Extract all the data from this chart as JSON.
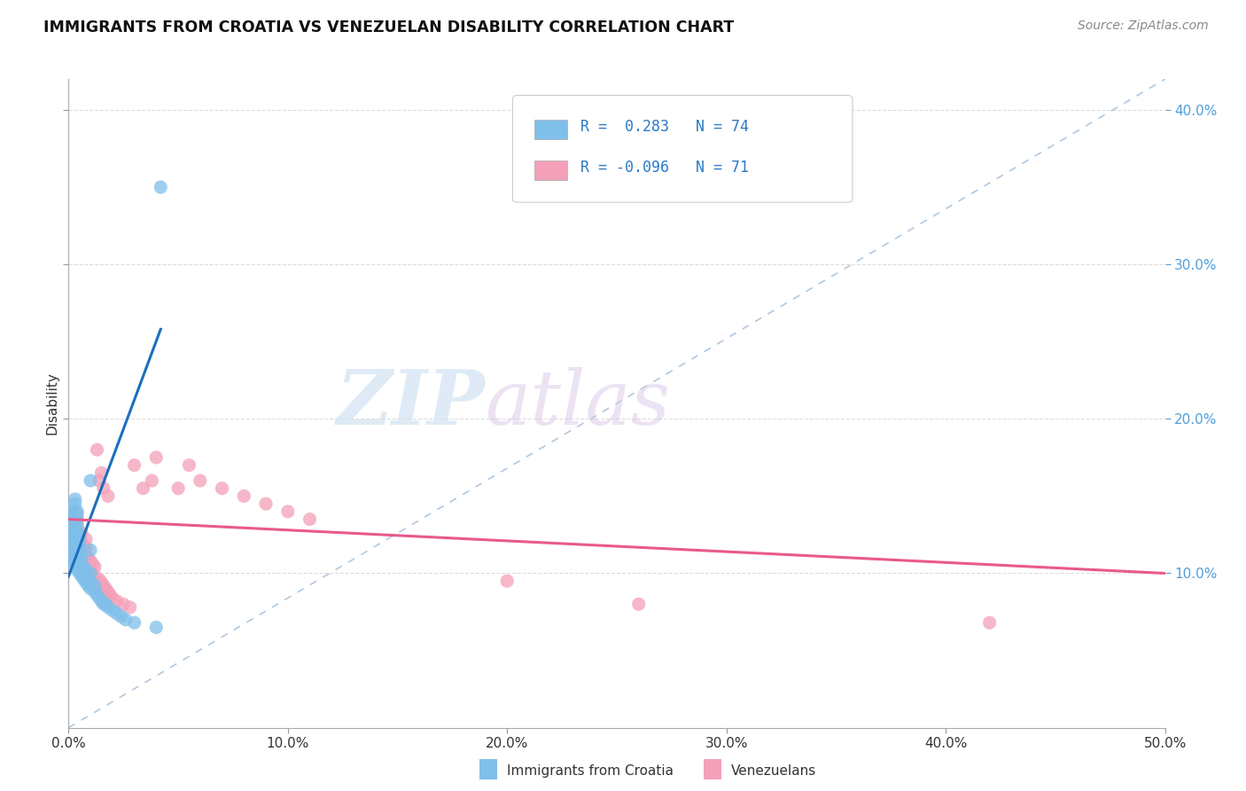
{
  "title": "IMMIGRANTS FROM CROATIA VS VENEZUELAN DISABILITY CORRELATION CHART",
  "source": "Source: ZipAtlas.com",
  "ylabel": "Disability",
  "xlim": [
    0.0,
    0.5
  ],
  "ylim": [
    0.0,
    0.42
  ],
  "xticks": [
    0.0,
    0.1,
    0.2,
    0.3,
    0.4,
    0.5
  ],
  "yticks": [
    0.1,
    0.2,
    0.3,
    0.4
  ],
  "ytick_labels": [
    "10.0%",
    "20.0%",
    "30.0%",
    "40.0%"
  ],
  "background_color": "#ffffff",
  "watermark_zip": "ZIP",
  "watermark_atlas": "atlas",
  "color_croatia": "#7fbfea",
  "color_venezuela": "#f4a0b8",
  "trendline_color_croatia": "#1a6fbe",
  "trendline_color_venezuela": "#e8598a",
  "trendline_dashed_color": "#b0c8e0",
  "croatia_trendline_x": [
    0.0,
    0.042
  ],
  "croatia_trendline_y": [
    0.098,
    0.258
  ],
  "venezuela_trendline_x": [
    0.0,
    0.5
  ],
  "venezuela_trendline_y": [
    0.135,
    0.1
  ],
  "croatia_x": [
    0.001,
    0.001,
    0.001,
    0.001,
    0.001,
    0.002,
    0.002,
    0.002,
    0.002,
    0.002,
    0.002,
    0.002,
    0.002,
    0.003,
    0.003,
    0.003,
    0.003,
    0.003,
    0.003,
    0.003,
    0.003,
    0.003,
    0.003,
    0.003,
    0.003,
    0.004,
    0.004,
    0.004,
    0.004,
    0.004,
    0.004,
    0.004,
    0.004,
    0.004,
    0.004,
    0.005,
    0.005,
    0.005,
    0.005,
    0.005,
    0.005,
    0.005,
    0.006,
    0.006,
    0.006,
    0.006,
    0.007,
    0.007,
    0.007,
    0.008,
    0.008,
    0.008,
    0.009,
    0.009,
    0.01,
    0.01,
    0.01,
    0.01,
    0.01,
    0.012,
    0.012,
    0.013,
    0.014,
    0.015,
    0.016,
    0.017,
    0.018,
    0.02,
    0.022,
    0.024,
    0.026,
    0.03,
    0.04,
    0.042
  ],
  "croatia_y": [
    0.115,
    0.12,
    0.125,
    0.13,
    0.14,
    0.108,
    0.112,
    0.118,
    0.122,
    0.126,
    0.13,
    0.135,
    0.14,
    0.105,
    0.108,
    0.112,
    0.116,
    0.12,
    0.124,
    0.128,
    0.132,
    0.136,
    0.14,
    0.145,
    0.148,
    0.102,
    0.106,
    0.11,
    0.114,
    0.118,
    0.122,
    0.126,
    0.13,
    0.135,
    0.14,
    0.1,
    0.104,
    0.108,
    0.112,
    0.116,
    0.12,
    0.124,
    0.098,
    0.102,
    0.106,
    0.11,
    0.096,
    0.1,
    0.104,
    0.094,
    0.098,
    0.102,
    0.092,
    0.096,
    0.09,
    0.095,
    0.1,
    0.115,
    0.16,
    0.088,
    0.092,
    0.086,
    0.084,
    0.082,
    0.08,
    0.08,
    0.078,
    0.076,
    0.074,
    0.072,
    0.07,
    0.068,
    0.065,
    0.35
  ],
  "venezuela_x": [
    0.001,
    0.001,
    0.001,
    0.002,
    0.002,
    0.002,
    0.002,
    0.003,
    0.003,
    0.003,
    0.003,
    0.003,
    0.004,
    0.004,
    0.004,
    0.004,
    0.004,
    0.004,
    0.005,
    0.005,
    0.005,
    0.005,
    0.006,
    0.006,
    0.006,
    0.006,
    0.007,
    0.007,
    0.007,
    0.008,
    0.008,
    0.008,
    0.008,
    0.009,
    0.009,
    0.01,
    0.01,
    0.011,
    0.011,
    0.012,
    0.012,
    0.013,
    0.014,
    0.014,
    0.015,
    0.015,
    0.016,
    0.016,
    0.017,
    0.018,
    0.018,
    0.019,
    0.02,
    0.022,
    0.025,
    0.028,
    0.03,
    0.034,
    0.038,
    0.04,
    0.05,
    0.055,
    0.06,
    0.07,
    0.08,
    0.09,
    0.1,
    0.11,
    0.2,
    0.26,
    0.42
  ],
  "venezuela_y": [
    0.12,
    0.128,
    0.135,
    0.118,
    0.124,
    0.13,
    0.138,
    0.115,
    0.12,
    0.125,
    0.13,
    0.136,
    0.112,
    0.118,
    0.124,
    0.128,
    0.132,
    0.138,
    0.11,
    0.115,
    0.12,
    0.126,
    0.108,
    0.114,
    0.12,
    0.126,
    0.106,
    0.112,
    0.118,
    0.105,
    0.11,
    0.116,
    0.122,
    0.104,
    0.11,
    0.102,
    0.108,
    0.1,
    0.106,
    0.098,
    0.104,
    0.18,
    0.096,
    0.16,
    0.094,
    0.165,
    0.092,
    0.155,
    0.09,
    0.088,
    0.15,
    0.086,
    0.084,
    0.082,
    0.08,
    0.078,
    0.17,
    0.155,
    0.16,
    0.175,
    0.155,
    0.17,
    0.16,
    0.155,
    0.15,
    0.145,
    0.14,
    0.135,
    0.095,
    0.08,
    0.068
  ]
}
